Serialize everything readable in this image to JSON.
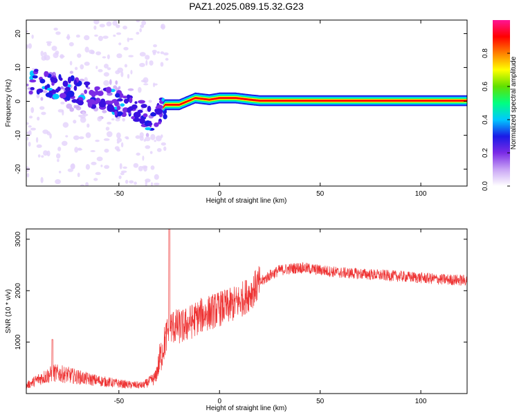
{
  "title": "PAZ1.2025.089.15.32.G23",
  "chart_data": [
    {
      "type": "heatmap",
      "xlabel": "Height of straight line (km)",
      "ylabel": "Frequency (Hz)",
      "xlim": [
        -96,
        123
      ],
      "ylim": [
        -25,
        24
      ],
      "x_ticks": [
        -50,
        0,
        50,
        100
      ],
      "y_ticks": [
        -20,
        -10,
        0,
        10,
        20
      ],
      "colorbar": {
        "label": "Normalized spectral amplitude",
        "range": [
          0,
          1
        ],
        "ticks": [
          0.0,
          0.2,
          0.4,
          0.6,
          0.8
        ],
        "tick_labels": [
          "0.0",
          "0.2",
          "0.4",
          "0.6",
          "0.8"
        ],
        "colors": [
          "#ffffff",
          "#c9a5f5",
          "#7b2be6",
          "#1a1ae6",
          "#00c8ff",
          "#00ff80",
          "#60e000",
          "#ffff00",
          "#ff8000",
          "#ff0000",
          "#ff1493"
        ]
      },
      "ridge": [
        {
          "x": -90,
          "y": 6
        },
        {
          "x": -80,
          "y": 4.5
        },
        {
          "x": -70,
          "y": 3
        },
        {
          "x": -60,
          "y": 1
        },
        {
          "x": -50,
          "y": -0.5
        },
        {
          "x": -40,
          "y": -3
        },
        {
          "x": -33,
          "y": -6
        },
        {
          "x": -27,
          "y": -1
        },
        {
          "x": -20,
          "y": -1
        },
        {
          "x": -12,
          "y": 1
        },
        {
          "x": -5,
          "y": 0.5
        },
        {
          "x": 0,
          "y": 1
        },
        {
          "x": 8,
          "y": 1
        },
        {
          "x": 15,
          "y": 0.5
        },
        {
          "x": 20,
          "y": 0.2
        },
        {
          "x": 123,
          "y": 0.2
        }
      ]
    },
    {
      "type": "line",
      "xlabel": "Height of straight line (km)",
      "ylabel": "SNR (10 * v/v)",
      "xlim": [
        -96,
        123
      ],
      "ylim": [
        0,
        3200
      ],
      "x_ticks": [
        -50,
        0,
        50,
        100
      ],
      "y_ticks": [
        1000,
        2000,
        3000
      ],
      "color": "#ee3333",
      "profile": [
        {
          "x": -96,
          "y": 150
        },
        {
          "x": -90,
          "y": 280
        },
        {
          "x": -82,
          "y": 400
        },
        {
          "x": -75,
          "y": 360
        },
        {
          "x": -65,
          "y": 280
        },
        {
          "x": -55,
          "y": 220
        },
        {
          "x": -45,
          "y": 170
        },
        {
          "x": -38,
          "y": 160
        },
        {
          "x": -32,
          "y": 300
        },
        {
          "x": -28,
          "y": 900
        },
        {
          "x": -25,
          "y": 1300
        },
        {
          "x": -18,
          "y": 1300
        },
        {
          "x": -10,
          "y": 1500
        },
        {
          "x": 0,
          "y": 1650
        },
        {
          "x": 5,
          "y": 1700
        },
        {
          "x": 10,
          "y": 1800
        },
        {
          "x": 15,
          "y": 1950
        },
        {
          "x": 20,
          "y": 2150
        },
        {
          "x": 25,
          "y": 2300
        },
        {
          "x": 30,
          "y": 2400
        },
        {
          "x": 40,
          "y": 2450
        },
        {
          "x": 50,
          "y": 2400
        },
        {
          "x": 60,
          "y": 2350
        },
        {
          "x": 70,
          "y": 2330
        },
        {
          "x": 80,
          "y": 2300
        },
        {
          "x": 90,
          "y": 2280
        },
        {
          "x": 100,
          "y": 2250
        },
        {
          "x": 110,
          "y": 2220
        },
        {
          "x": 123,
          "y": 2200
        }
      ],
      "peaks": [
        {
          "x": -25,
          "y": 3200
        },
        {
          "x": -83,
          "y": 1050
        }
      ]
    }
  ]
}
